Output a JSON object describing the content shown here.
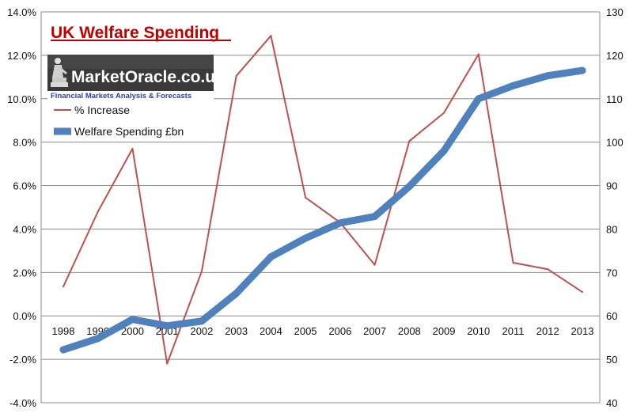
{
  "chart_data": {
    "type": "line",
    "title": "UK Welfare Spending",
    "categories": [
      "1998",
      "1999",
      "2000",
      "2001",
      "2002",
      "2003",
      "2004",
      "2005",
      "2006",
      "2007",
      "2008",
      "2009",
      "2010",
      "2011",
      "2012",
      "2013"
    ],
    "y_left": {
      "min": -4.0,
      "max": 14.0,
      "step": 2.0,
      "tick_labels": [
        "-4.0%",
        "-2.0%",
        "0.0%",
        "2.0%",
        "4.0%",
        "6.0%",
        "8.0%",
        "10.0%",
        "12.0%",
        "14.0%"
      ]
    },
    "y_right": {
      "min": 40,
      "max": 130,
      "step": 10,
      "tick_labels": [
        "40",
        "50",
        "60",
        "70",
        "80",
        "90",
        "100",
        "110",
        "120",
        "130"
      ]
    },
    "grid": true,
    "legend_position": "top-left",
    "series": [
      {
        "name": "% Increase",
        "axis": "left",
        "color": "#c0504d",
        "values": [
          1.35,
          4.8,
          7.7,
          -2.2,
          2.05,
          11.05,
          12.9,
          5.45,
          4.3,
          2.35,
          8.05,
          9.35,
          12.05,
          2.45,
          2.15,
          1.1
        ]
      },
      {
        "name": "Welfare Spending £bn",
        "axis": "right",
        "color": "#4f81bd",
        "values": [
          52.2,
          54.8,
          59.2,
          57.7,
          58.8,
          65.2,
          73.6,
          77.9,
          81.4,
          82.9,
          89.8,
          98.0,
          110.0,
          113.0,
          115.3,
          116.5
        ]
      }
    ]
  },
  "watermark": {
    "brand": "MarketOracle.co.uk",
    "tagline": "Financial Markets Analysis & Forecasts"
  }
}
